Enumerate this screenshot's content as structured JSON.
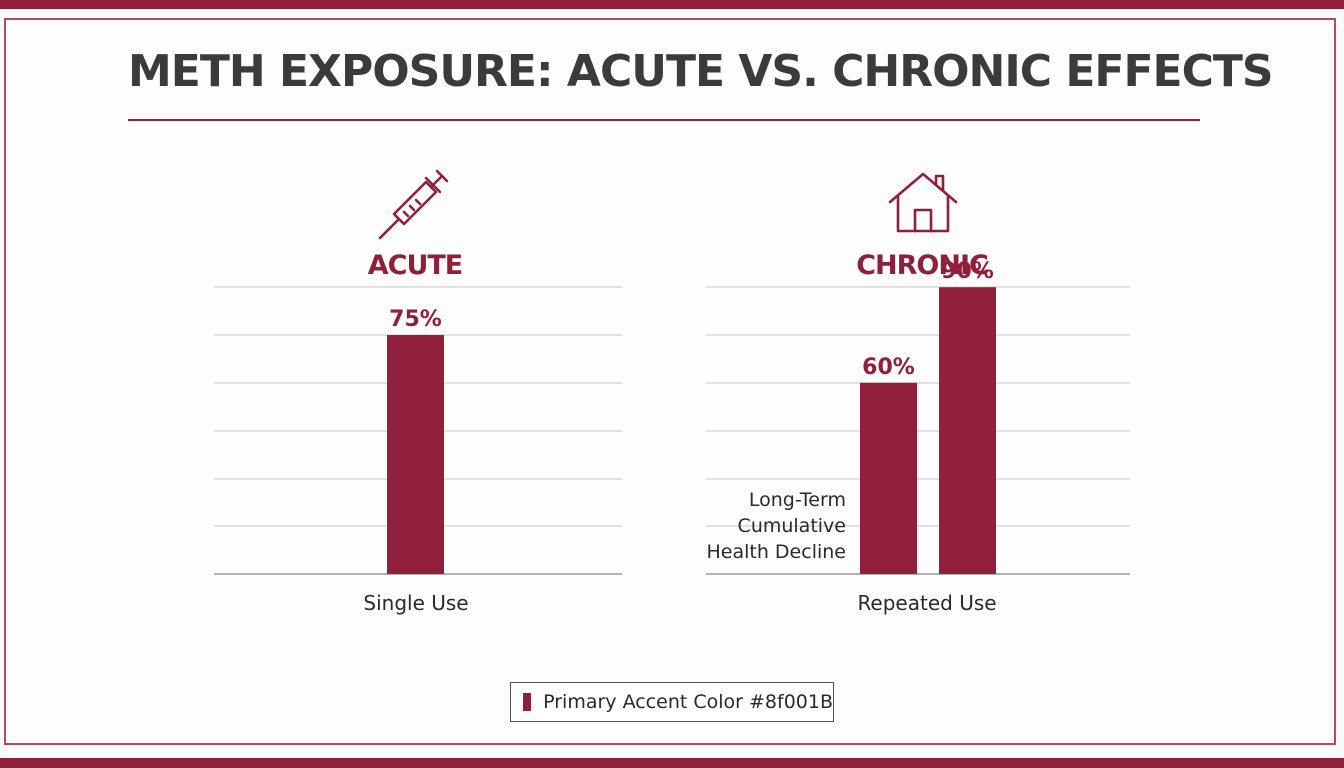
{
  "title": "METH EXPOSURE: ACUTE VS. CHRONIC EFFECTS",
  "colors": {
    "accent": "#8f1f3b",
    "text": "#2a2a2a",
    "grid": "#d8d8d8"
  },
  "icons": {
    "acute": "syringe-icon",
    "chronic": "house-icon"
  },
  "legend": {
    "label": "Primary Accent Color #8f001B"
  },
  "chart_data": [
    {
      "type": "bar",
      "title": "ACUTE",
      "xlabel": "Single Use",
      "ylim": [
        0,
        100
      ],
      "grid": true,
      "series": [
        {
          "values": [
            75
          ],
          "labels": [
            "75%"
          ]
        }
      ]
    },
    {
      "type": "bar",
      "title": "CHRONIC",
      "xlabel": "Repeated Use",
      "ylim": [
        0,
        100
      ],
      "grid": true,
      "annotation": [
        "Long-Term",
        "Cumulative",
        "Health Decline"
      ],
      "series": [
        {
          "values": [
            60,
            90
          ],
          "labels": [
            "60%",
            "90%"
          ]
        }
      ]
    }
  ]
}
